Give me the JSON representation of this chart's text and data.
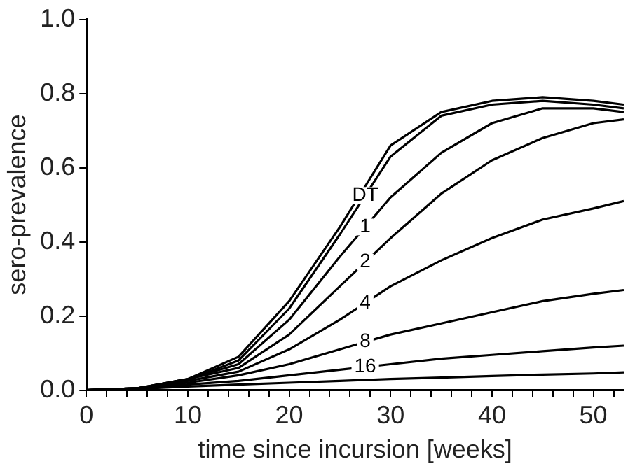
{
  "chart_data": {
    "type": "line",
    "xlabel": "time since incursion [weeks]",
    "ylabel": "sero-prevalence",
    "x": [
      0,
      5,
      10,
      15,
      20,
      25,
      30,
      35,
      40,
      45,
      50,
      53
    ],
    "series": [
      {
        "color": "#000000",
        "values": [
          0,
          0.005,
          0.03,
          0.09,
          0.24,
          0.44,
          0.66,
          0.75,
          0.78,
          0.79,
          0.78,
          0.77
        ]
      },
      {
        "name": "DT",
        "color": "#000000",
        "values": [
          0,
          0.004,
          0.028,
          0.08,
          0.22,
          0.42,
          0.63,
          0.74,
          0.77,
          0.78,
          0.77,
          0.76
        ]
      },
      {
        "name": "1",
        "color": "#000000",
        "values": [
          0,
          0.005,
          0.03,
          0.07,
          0.19,
          0.36,
          0.52,
          0.64,
          0.72,
          0.76,
          0.76,
          0.75
        ]
      },
      {
        "name": "2",
        "color": "#000000",
        "values": [
          0,
          0.005,
          0.03,
          0.06,
          0.15,
          0.28,
          0.41,
          0.53,
          0.62,
          0.68,
          0.72,
          0.73
        ]
      },
      {
        "name": "4",
        "color": "#000000",
        "values": [
          0,
          0.005,
          0.025,
          0.05,
          0.11,
          0.19,
          0.28,
          0.35,
          0.41,
          0.46,
          0.49,
          0.51
        ]
      },
      {
        "name": "8",
        "color": "#000000",
        "values": [
          0,
          0.005,
          0.02,
          0.04,
          0.07,
          0.11,
          0.15,
          0.18,
          0.21,
          0.24,
          0.26,
          0.27
        ]
      },
      {
        "name": "16",
        "color": "#000000",
        "values": [
          0,
          0.005,
          0.015,
          0.025,
          0.04,
          0.055,
          0.07,
          0.085,
          0.095,
          0.105,
          0.115,
          0.12
        ]
      },
      {
        "color": "#000000",
        "values": [
          0,
          0.003,
          0.01,
          0.015,
          0.02,
          0.025,
          0.03,
          0.034,
          0.038,
          0.042,
          0.045,
          0.048
        ]
      }
    ],
    "xlim": [
      0,
      53
    ],
    "ylim": [
      0,
      1
    ],
    "xticks": [
      0,
      {
        "value": 2,
        "label": null
      },
      {
        "value": 4,
        "label": null
      },
      {
        "value": 6,
        "label": null
      },
      {
        "value": 8,
        "label": null
      },
      10,
      {
        "value": 12,
        "label": null
      },
      {
        "value": 14,
        "label": null
      },
      {
        "value": 16,
        "label": null
      },
      {
        "value": 18,
        "label": null
      },
      20,
      {
        "value": 22,
        "label": null
      },
      {
        "value": 24,
        "label": null
      },
      {
        "value": 26,
        "label": null
      },
      {
        "value": 28,
        "label": null
      },
      30,
      {
        "value": 32,
        "label": null
      },
      {
        "value": 34,
        "label": null
      },
      {
        "value": 36,
        "label": null
      },
      {
        "value": 38,
        "label": null
      },
      40,
      {
        "value": 42,
        "label": null
      },
      {
        "value": 44,
        "label": null
      },
      {
        "value": 46,
        "label": null
      },
      {
        "value": 48,
        "label": null
      },
      50,
      {
        "value": 52,
        "label": null
      }
    ],
    "yticks": [
      {
        "value": 0,
        "label": "0.0"
      },
      {
        "value": 0.2,
        "label": "0.2"
      },
      {
        "value": 0.4,
        "label": "0.4"
      },
      {
        "value": 0.6,
        "label": "0.6"
      },
      {
        "value": 0.8,
        "label": "0.8"
      },
      {
        "value": 1,
        "label": "1.0"
      }
    ],
    "grid": false,
    "legend": false,
    "marker": "none",
    "line_style": "solid"
  }
}
